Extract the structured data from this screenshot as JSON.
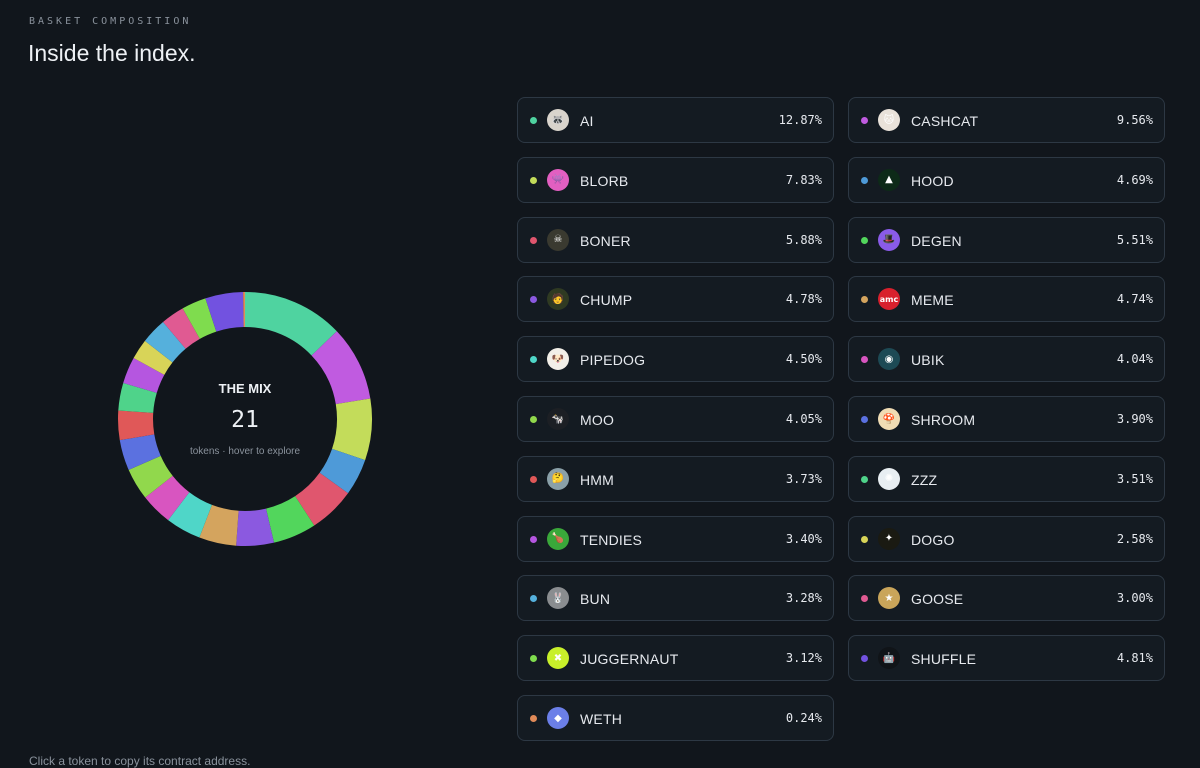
{
  "header": {
    "eyebrow": "BASKET COMPOSITION",
    "title": "Inside the index."
  },
  "donut": {
    "label": "THE MIX",
    "count": "21",
    "hint": "tokens · hover to explore"
  },
  "footer": {
    "note": "Click a token to copy its contract address."
  },
  "tokens": [
    {
      "symbol": "AI",
      "percent": "12.87%",
      "value": 12.87,
      "color": "#4fd3a0",
      "icon": "raccoon-avatar-icon",
      "icon_bg": "#d9d4cc",
      "glyph": "🦝"
    },
    {
      "symbol": "CASHCAT",
      "percent": "9.56%",
      "value": 9.56,
      "color": "#c05be0",
      "icon": "cat-avatar-icon",
      "icon_bg": "#e9e2da",
      "glyph": "🐱"
    },
    {
      "symbol": "BLORB",
      "percent": "7.83%",
      "value": 7.83,
      "color": "#c3dc5a",
      "icon": "pink-monster-avatar-icon",
      "icon_bg": "#e25fc1",
      "glyph": "👾"
    },
    {
      "symbol": "HOOD",
      "percent": "4.69%",
      "value": 4.69,
      "color": "#4e9ad8",
      "icon": "hood-logo-icon",
      "icon_bg": "#0d2a18",
      "glyph": "▲"
    },
    {
      "symbol": "BONER",
      "percent": "5.88%",
      "value": 5.88,
      "color": "#e0566e",
      "icon": "skeleton-avatar-icon",
      "icon_bg": "#3a3a30",
      "glyph": "☠"
    },
    {
      "symbol": "DEGEN",
      "percent": "5.51%",
      "value": 5.51,
      "color": "#52d65c",
      "icon": "purple-hat-icon",
      "icon_bg": "#8a5be8",
      "glyph": "🎩"
    },
    {
      "symbol": "CHUMP",
      "percent": "4.78%",
      "value": 4.78,
      "color": "#8b59e0",
      "icon": "chump-avatar-icon",
      "icon_bg": "#2f3a22",
      "glyph": "🧑"
    },
    {
      "symbol": "MEME",
      "percent": "4.74%",
      "value": 4.74,
      "color": "#d4a45e",
      "icon": "amc-logo-icon",
      "icon_bg": "#d8202d",
      "glyph": "amc"
    },
    {
      "symbol": "PIPEDOG",
      "percent": "4.50%",
      "value": 4.5,
      "color": "#4fd6c8",
      "icon": "dog-avatar-icon",
      "icon_bg": "#f2efe8",
      "glyph": "🐶"
    },
    {
      "symbol": "UBIK",
      "percent": "4.04%",
      "value": 4.04,
      "color": "#d855c0",
      "icon": "ubik-avatar-icon",
      "icon_bg": "#1d4a55",
      "glyph": "◉"
    },
    {
      "symbol": "MOO",
      "percent": "4.05%",
      "value": 4.05,
      "color": "#91d84c",
      "icon": "cow-avatar-icon",
      "icon_bg": "#1c1f24",
      "glyph": "🐄"
    },
    {
      "symbol": "SHROOM",
      "percent": "3.90%",
      "value": 3.9,
      "color": "#5b71e0",
      "icon": "mushroom-avatar-icon",
      "icon_bg": "#f0dcb4",
      "glyph": "🍄"
    },
    {
      "symbol": "HMM",
      "percent": "3.73%",
      "value": 3.73,
      "color": "#e05858",
      "icon": "hmm-avatar-icon",
      "icon_bg": "#8aa0a8",
      "glyph": "🤔"
    },
    {
      "symbol": "ZZZ",
      "percent": "3.51%",
      "value": 3.51,
      "color": "#4fd38a",
      "icon": "zzz-avatar-icon",
      "icon_bg": "#e8eef2",
      "glyph": "✺"
    },
    {
      "symbol": "TENDIES",
      "percent": "3.40%",
      "value": 3.4,
      "color": "#b556e0",
      "icon": "tendies-avatar-icon",
      "icon_bg": "#3aa83a",
      "glyph": "🍗"
    },
    {
      "symbol": "DOGO",
      "percent": "2.58%",
      "value": 2.58,
      "color": "#d8d458",
      "icon": "dogo-avatar-icon",
      "icon_bg": "#1a1a12",
      "glyph": "✦"
    },
    {
      "symbol": "BUN",
      "percent": "3.28%",
      "value": 3.28,
      "color": "#55b0dc",
      "icon": "bun-avatar-icon",
      "icon_bg": "#8a8d90",
      "glyph": "🐰"
    },
    {
      "symbol": "GOOSE",
      "percent": "3.00%",
      "value": 3.0,
      "color": "#e05a92",
      "icon": "goose-badge-icon",
      "icon_bg": "#c9a55a",
      "glyph": "★"
    },
    {
      "symbol": "JUGGERNAUT",
      "percent": "3.12%",
      "value": 3.12,
      "color": "#7fdc4e",
      "icon": "juggernaut-logo-icon",
      "icon_bg": "#c8f02a",
      "glyph": "✖"
    },
    {
      "symbol": "SHUFFLE",
      "percent": "4.81%",
      "value": 4.81,
      "color": "#7252e0",
      "icon": "robot-avatar-icon",
      "icon_bg": "#101418",
      "glyph": "🤖"
    },
    {
      "symbol": "WETH",
      "percent": "0.24%",
      "value": 0.24,
      "color": "#e08a58",
      "icon": "ethereum-icon",
      "icon_bg": "#6b7fe8",
      "glyph": "◆"
    }
  ]
}
